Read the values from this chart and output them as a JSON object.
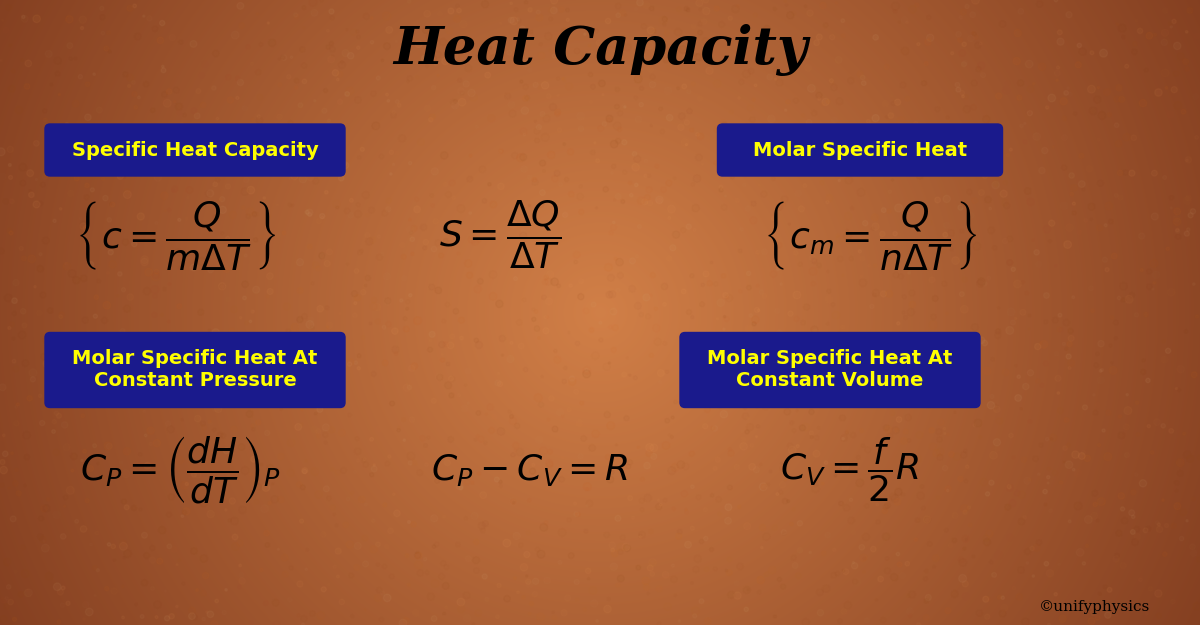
{
  "title": "Heat Capacity",
  "title_style": "italic",
  "title_fontsize": 38,
  "title_color": "black",
  "bg_color_center": "#D4855A",
  "bg_color_edge": "#8B3A1A",
  "label1": "Specific Heat Capacity",
  "label2": "Molar Specific Heat",
  "label3": "Molar Specific Heat At\nConstant Pressure",
  "label4": "Molar Specific Heat At\nConstant Volume",
  "label_bg": "#1A1A8C",
  "label_text_color": "#FFFF00",
  "formula_color": "black",
  "copyright": "©unifyphysics",
  "formula1": "c = \\dfrac{Q}{m\\Delta T}",
  "formula2": "S = \\dfrac{\\Delta Q}{\\Delta T}",
  "formula3": "c_m = \\dfrac{Q}{n\\Delta T}",
  "formula4": "C_P = \\left(\\dfrac{dH}{dT}\\right)_P",
  "formula5": "C_P - C_V = R",
  "formula6": "C_V = \\dfrac{f}{2}R"
}
